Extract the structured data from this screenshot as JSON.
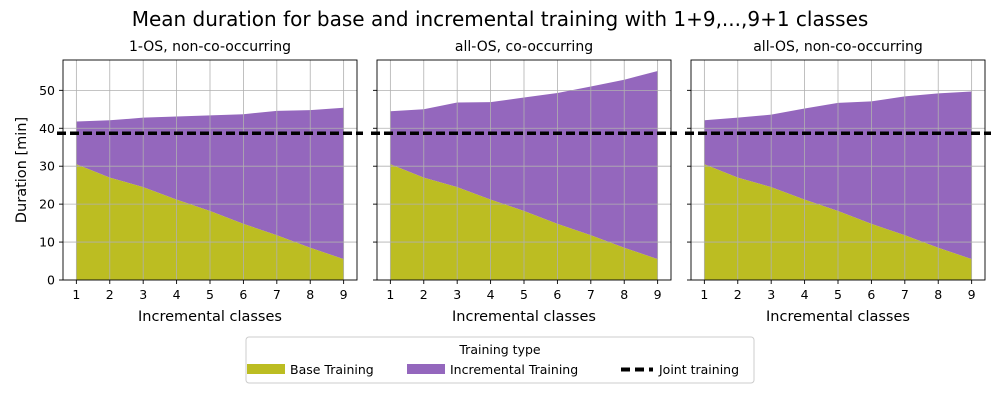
{
  "figure": {
    "title": "Mean duration for base and incremental training with 1+9,...,9+1 classes"
  },
  "chart_data": [
    {
      "type": "area",
      "title": "1-OS, non-co-occurring",
      "xlabel": "Incremental classes",
      "ylabel": "Duration [min]",
      "x": [
        1,
        2,
        3,
        4,
        5,
        6,
        7,
        8,
        9
      ],
      "series": [
        {
          "name": "Base Training",
          "stacked": true,
          "values": [
            30.5,
            27.0,
            24.5,
            21.2,
            18.2,
            14.8,
            11.8,
            8.5,
            5.5
          ]
        },
        {
          "name": "Incremental Training",
          "stacked": true,
          "values": [
            11.3,
            15.1,
            18.3,
            21.9,
            25.2,
            28.9,
            32.8,
            36.3,
            39.9
          ]
        },
        {
          "name": "Joint training",
          "type": "hline",
          "value": 38.7
        }
      ],
      "xlim": [
        0.6,
        9.4
      ],
      "ylim": [
        0,
        58
      ],
      "xticks": [
        1,
        2,
        3,
        4,
        5,
        6,
        7,
        8,
        9
      ],
      "yticks": [
        0,
        10,
        20,
        30,
        40,
        50
      ],
      "grid": true
    },
    {
      "type": "area",
      "title": "all-OS, co-occurring",
      "xlabel": "Incremental classes",
      "ylabel": "",
      "x": [
        1,
        2,
        3,
        4,
        5,
        6,
        7,
        8,
        9
      ],
      "series": [
        {
          "name": "Base Training",
          "stacked": true,
          "values": [
            30.5,
            27.0,
            24.5,
            21.2,
            18.2,
            14.8,
            11.8,
            8.5,
            5.5
          ]
        },
        {
          "name": "Incremental Training",
          "stacked": true,
          "values": [
            14.0,
            18.0,
            22.3,
            25.7,
            29.9,
            34.5,
            39.2,
            44.3,
            49.6
          ]
        },
        {
          "name": "Joint training",
          "type": "hline",
          "value": 38.7
        }
      ],
      "xlim": [
        0.6,
        9.4
      ],
      "ylim": [
        0,
        58
      ],
      "xticks": [
        1,
        2,
        3,
        4,
        5,
        6,
        7,
        8,
        9
      ],
      "yticks": [
        0,
        10,
        20,
        30,
        40,
        50
      ],
      "grid": true
    },
    {
      "type": "area",
      "title": "all-OS, non-co-occurring",
      "xlabel": "Incremental classes",
      "ylabel": "",
      "x": [
        1,
        2,
        3,
        4,
        5,
        6,
        7,
        8,
        9
      ],
      "series": [
        {
          "name": "Base Training",
          "stacked": true,
          "values": [
            30.5,
            27.0,
            24.5,
            21.2,
            18.2,
            14.8,
            11.8,
            8.5,
            5.5
          ]
        },
        {
          "name": "Incremental Training",
          "stacked": true,
          "values": [
            11.6,
            15.8,
            19.1,
            24.0,
            28.5,
            32.3,
            36.6,
            40.7,
            44.2
          ]
        },
        {
          "name": "Joint training",
          "type": "hline",
          "value": 38.7
        }
      ],
      "xlim": [
        0.6,
        9.4
      ],
      "ylim": [
        0,
        58
      ],
      "xticks": [
        1,
        2,
        3,
        4,
        5,
        6,
        7,
        8,
        9
      ],
      "yticks": [
        0,
        10,
        20,
        30,
        40,
        50
      ],
      "grid": true
    }
  ],
  "legend": {
    "title": "Training type",
    "position": "bottom-center",
    "items": [
      {
        "label": "Base Training",
        "style": "fill",
        "color": "#bcbd22"
      },
      {
        "label": "Incremental Training",
        "style": "fill",
        "color": "#9467bd"
      },
      {
        "label": "Joint training",
        "style": "dashed-line",
        "color": "#000000"
      }
    ]
  },
  "colors": {
    "base": "#bcbd22",
    "incremental": "#9467bd",
    "joint": "#000000",
    "grid": "#b0b0b0"
  }
}
